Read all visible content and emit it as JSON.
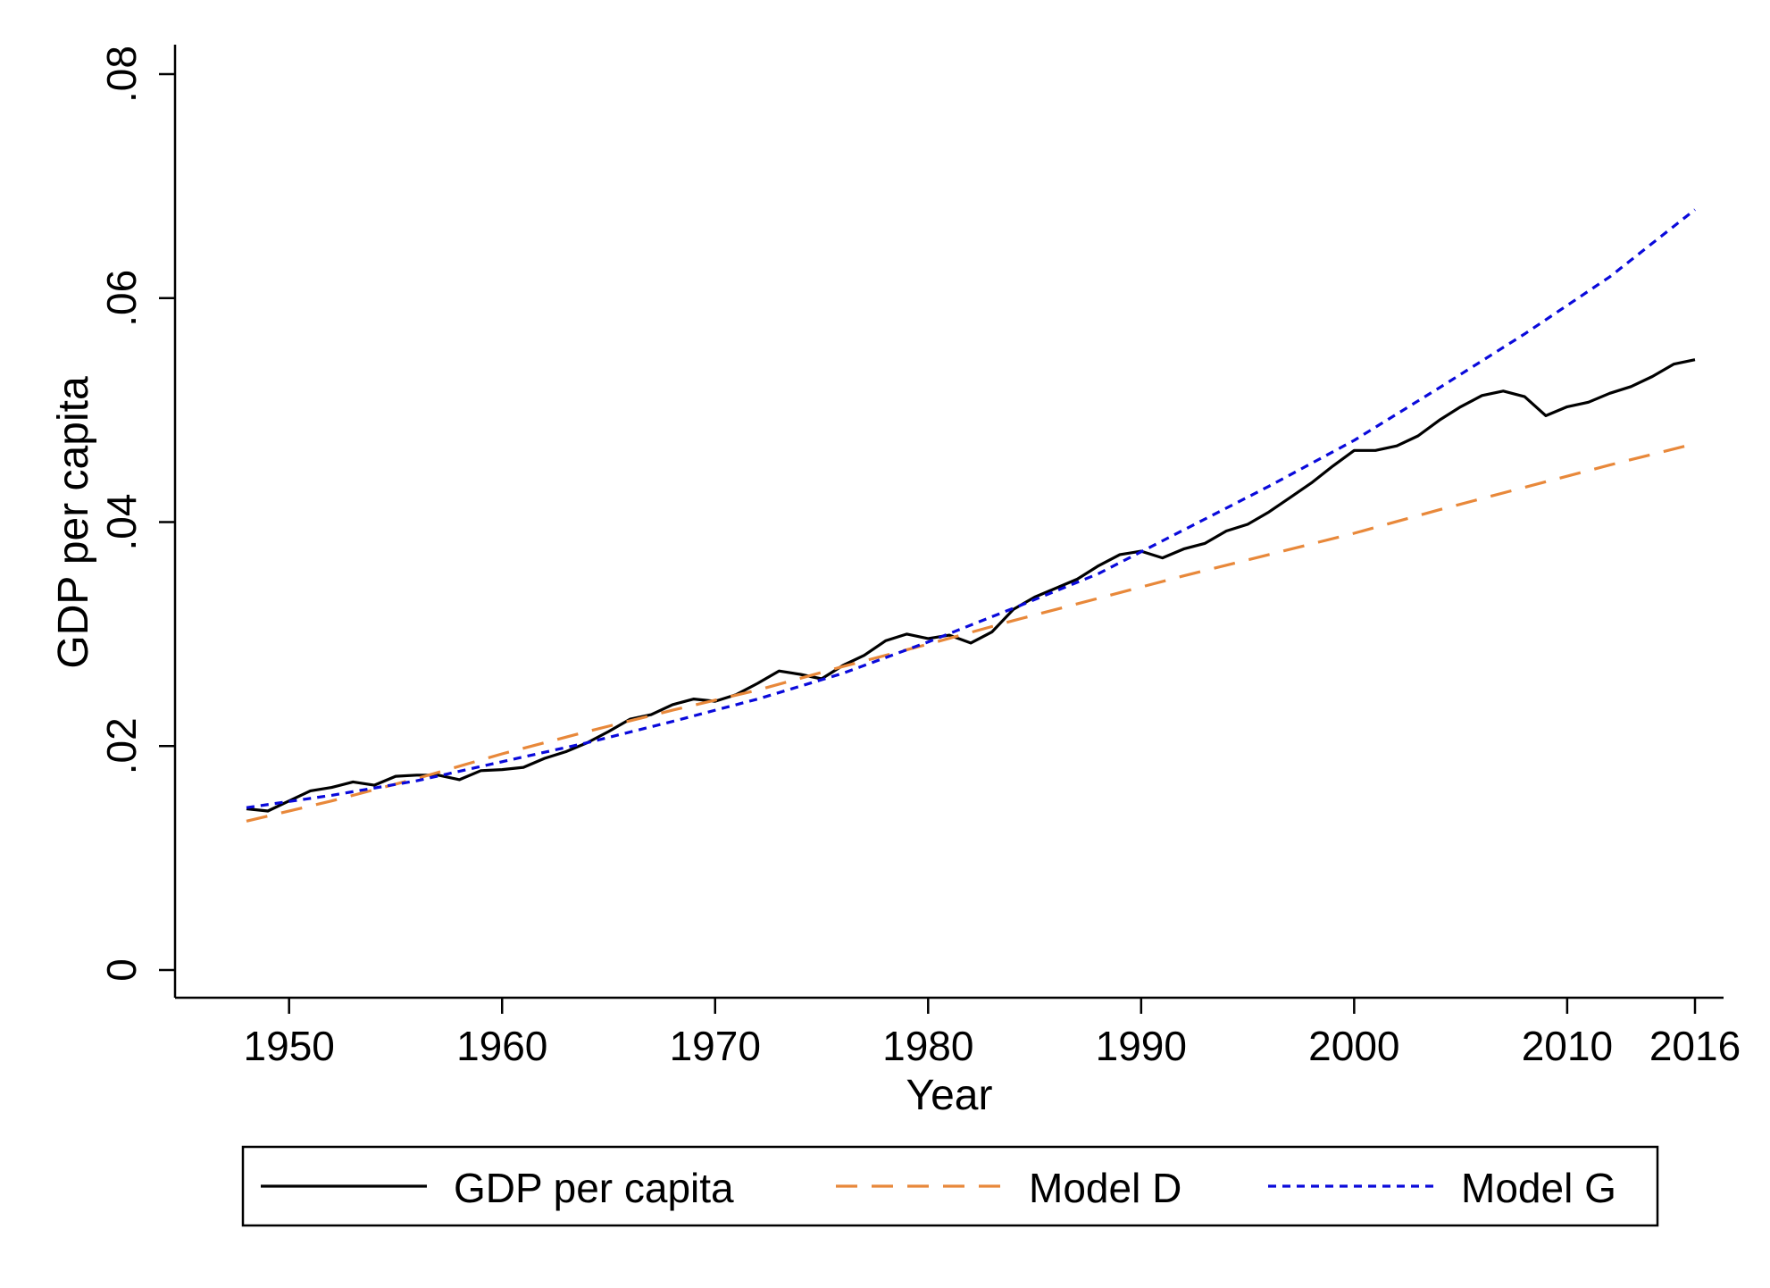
{
  "chart_data": {
    "type": "line",
    "title": "",
    "xlabel": "Year",
    "ylabel": "GDP per capita",
    "xlim": [
      1948,
      2016
    ],
    "ylim": [
      0,
      0.08
    ],
    "x_ticks": [
      {
        "value": 1950,
        "label": "1950"
      },
      {
        "value": 1960,
        "label": "1960"
      },
      {
        "value": 1970,
        "label": "1970"
      },
      {
        "value": 1980,
        "label": "1980"
      },
      {
        "value": 1990,
        "label": "1990"
      },
      {
        "value": 2000,
        "label": "2000"
      },
      {
        "value": 2010,
        "label": "2010"
      },
      {
        "value": 2016,
        "label": "2016"
      }
    ],
    "y_ticks": [
      {
        "value": 0,
        "label": "0"
      },
      {
        "value": 0.02,
        "label": ".02"
      },
      {
        "value": 0.04,
        "label": ".04"
      },
      {
        "value": 0.06,
        "label": ".06"
      },
      {
        "value": 0.08,
        "label": ".08"
      }
    ],
    "grid": false,
    "legend_placement": "bottom",
    "series": [
      {
        "name": "GDP per capita",
        "color": "#000000",
        "dash": "solid",
        "x": [
          1948,
          1949,
          1950,
          1951,
          1952,
          1953,
          1954,
          1955,
          1956,
          1957,
          1958,
          1959,
          1960,
          1961,
          1962,
          1963,
          1964,
          1965,
          1966,
          1967,
          1968,
          1969,
          1970,
          1971,
          1972,
          1973,
          1974,
          1975,
          1976,
          1977,
          1978,
          1979,
          1980,
          1981,
          1982,
          1983,
          1984,
          1985,
          1986,
          1987,
          1988,
          1989,
          1990,
          1991,
          1992,
          1993,
          1994,
          1995,
          1996,
          1997,
          1998,
          1999,
          2000,
          2001,
          2002,
          2003,
          2004,
          2005,
          2006,
          2007,
          2008,
          2009,
          2010,
          2011,
          2012,
          2013,
          2014,
          2015,
          2016
        ],
        "values": [
          0.0144,
          0.0142,
          0.0151,
          0.016,
          0.0163,
          0.0168,
          0.0165,
          0.0173,
          0.0174,
          0.0174,
          0.017,
          0.0178,
          0.0179,
          0.0181,
          0.0189,
          0.0195,
          0.0203,
          0.0213,
          0.0224,
          0.0228,
          0.0237,
          0.0242,
          0.024,
          0.0246,
          0.0256,
          0.0267,
          0.0264,
          0.026,
          0.0272,
          0.0281,
          0.0294,
          0.03,
          0.0296,
          0.0299,
          0.0292,
          0.0302,
          0.0322,
          0.0333,
          0.0341,
          0.0349,
          0.0361,
          0.0371,
          0.0374,
          0.0368,
          0.0376,
          0.0381,
          0.0392,
          0.0398,
          0.0409,
          0.0422,
          0.0435,
          0.045,
          0.0464,
          0.0464,
          0.0468,
          0.0477,
          0.0491,
          0.0503,
          0.0513,
          0.0517,
          0.0512,
          0.0495,
          0.0503,
          0.0507,
          0.0515,
          0.0521,
          0.053,
          0.0541,
          0.0545
        ]
      },
      {
        "name": "Model D",
        "color": "#E8883A",
        "dash": "long-dash",
        "x": [
          1948,
          1952,
          1956,
          1960,
          1964,
          1968,
          1972,
          1976,
          1980,
          1984,
          1988,
          1992,
          1996,
          2000,
          2004,
          2008,
          2012,
          2016
        ],
        "values": [
          0.0133,
          0.0151,
          0.0171,
          0.0193,
          0.0213,
          0.0232,
          0.025,
          0.0271,
          0.0291,
          0.0312,
          0.0332,
          0.0352,
          0.0371,
          0.039,
          0.0411,
          0.0431,
          0.0451,
          0.047
        ]
      },
      {
        "name": "Model G",
        "color": "#0A0ADB",
        "dash": "short-dash",
        "x": [
          1948,
          1952,
          1956,
          1960,
          1964,
          1968,
          1972,
          1976,
          1980,
          1984,
          1988,
          1992,
          1996,
          2000,
          2004,
          2008,
          2012,
          2016
        ],
        "values": [
          0.0145,
          0.0156,
          0.0169,
          0.0186,
          0.0203,
          0.0222,
          0.0242,
          0.0265,
          0.0293,
          0.0323,
          0.0354,
          0.0393,
          0.0432,
          0.0473,
          0.052,
          0.0568,
          0.0619,
          0.0679
        ]
      }
    ]
  }
}
